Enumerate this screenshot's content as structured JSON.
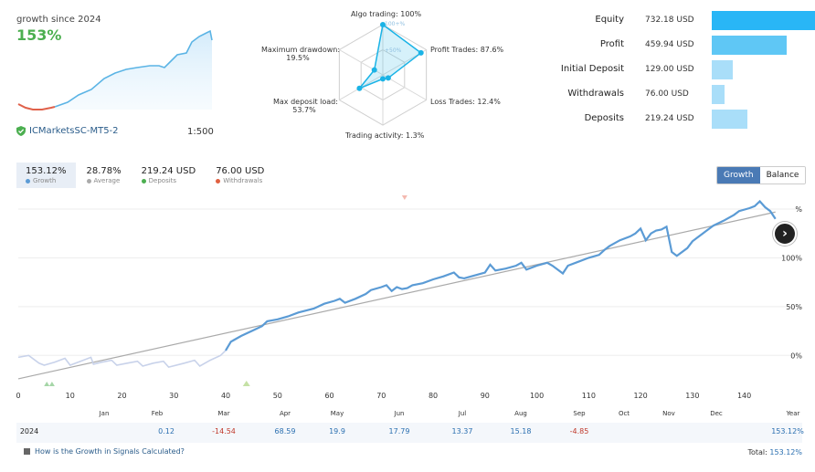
{
  "summary": {
    "growth_title": "growth since 2024",
    "growth_value": "153%",
    "account": "ICMarketsSC-MT5-2",
    "leverage": "1:500"
  },
  "radar": {
    "labels": {
      "algo": "Algo trading: 100%",
      "profit": "Profit Trades: 87.6%",
      "loss": "Loss Trades: 12.4%",
      "activity": "Trading activity: 1.3%",
      "deposit_load": "Max deposit load:",
      "deposit_load_val": "53.7%",
      "drawdown": "Maximum drawdown:",
      "drawdown_val": "19.5%"
    },
    "ring_labels": {
      "r100": "100+%",
      "r50": "+50%"
    },
    "values": {
      "algo": 1.0,
      "profit": 0.876,
      "loss": 0.124,
      "activity": 0.013,
      "deposit_load": 0.537,
      "drawdown": 0.195
    },
    "color": "#1ab3e6"
  },
  "balance_bars": [
    {
      "label": "Equity",
      "value": "732.18 USD",
      "amount": 732.18,
      "color": "#29b6f6"
    },
    {
      "label": "Profit",
      "value": "459.94 USD",
      "amount": 459.94,
      "color": "#5fc7f5"
    },
    {
      "label": "Initial Deposit",
      "value": "129.00 USD",
      "amount": 129.0,
      "color": "#a9def9"
    },
    {
      "label": "Withdrawals",
      "value": "76.00  USD",
      "amount": 76.0,
      "color": "#a9def9"
    },
    {
      "label": "Deposits",
      "value": "219.24 USD",
      "amount": 219.24,
      "color": "#a9def9"
    }
  ],
  "stats": [
    {
      "value": "153.12%",
      "label": "Growth",
      "color": "#5b9bd5",
      "active": true
    },
    {
      "value": "28.78%",
      "label": "Average",
      "color": "#aaaaaa",
      "active": false
    },
    {
      "value": "219.24 USD",
      "label": "Deposits",
      "color": "#4caf50",
      "active": false
    },
    {
      "value": "76.00 USD",
      "label": "Withdrawals",
      "color": "#e06040",
      "active": false
    }
  ],
  "toggle": {
    "growth": "Growth",
    "balance": "Balance"
  },
  "chart_data": {
    "type": "line",
    "x_ticks": [
      "0",
      "10",
      "20",
      "30",
      "40",
      "50",
      "60",
      "70",
      "80",
      "90",
      "100",
      "110",
      "120",
      "130",
      "140"
    ],
    "y_ticks": [
      "0%",
      "50%",
      "100%",
      "%"
    ],
    "xlim": [
      0,
      145
    ],
    "ylim": [
      -25,
      165
    ],
    "series": [
      {
        "values": [
          [
            0,
            -2
          ],
          [
            2,
            0
          ],
          [
            4,
            -8
          ],
          [
            5,
            -10
          ],
          [
            7,
            -7
          ],
          [
            9,
            -3
          ],
          [
            10,
            -10
          ],
          [
            12,
            -6
          ],
          [
            14,
            -2
          ],
          [
            14.5,
            -9
          ],
          [
            16,
            -7
          ],
          [
            18,
            -5
          ],
          [
            19,
            -10
          ],
          [
            21,
            -8
          ],
          [
            23,
            -6
          ],
          [
            24,
            -11
          ],
          [
            26,
            -8
          ],
          [
            28,
            -6
          ],
          [
            29,
            -12
          ],
          [
            32,
            -8
          ],
          [
            34,
            -5
          ],
          [
            35,
            -11
          ],
          [
            37,
            -5
          ],
          [
            39,
            0
          ],
          [
            40,
            5
          ],
          [
            41,
            14
          ],
          [
            43,
            20
          ],
          [
            45,
            25
          ],
          [
            47,
            30
          ],
          [
            48,
            35
          ],
          [
            50,
            37
          ],
          [
            52,
            40
          ],
          [
            54,
            44
          ],
          [
            57,
            48
          ],
          [
            59,
            53
          ],
          [
            61,
            56
          ],
          [
            62,
            58
          ],
          [
            63,
            54
          ],
          [
            65,
            58
          ],
          [
            67,
            63
          ],
          [
            68,
            67
          ],
          [
            70,
            70
          ],
          [
            71,
            72
          ],
          [
            72,
            66
          ],
          [
            73,
            70
          ],
          [
            74,
            68
          ],
          [
            75,
            69
          ],
          [
            76,
            72
          ],
          [
            78,
            74
          ],
          [
            80,
            78
          ],
          [
            82,
            81
          ],
          [
            84,
            85
          ],
          [
            85,
            80
          ],
          [
            86,
            79
          ],
          [
            88,
            82
          ],
          [
            90,
            85
          ],
          [
            91,
            93
          ],
          [
            92,
            87
          ],
          [
            94,
            89
          ],
          [
            96,
            92
          ],
          [
            97,
            95
          ],
          [
            98,
            88
          ],
          [
            100,
            92
          ],
          [
            102,
            95
          ],
          [
            103,
            92
          ],
          [
            104,
            88
          ],
          [
            105,
            84
          ],
          [
            106,
            92
          ],
          [
            108,
            96
          ],
          [
            110,
            100
          ],
          [
            112,
            103
          ],
          [
            113,
            108
          ],
          [
            114,
            112
          ],
          [
            116,
            118
          ],
          [
            118,
            122
          ],
          [
            119,
            125
          ],
          [
            120,
            130
          ],
          [
            121,
            118
          ],
          [
            122,
            125
          ],
          [
            123,
            128
          ],
          [
            124,
            129
          ],
          [
            125,
            132
          ],
          [
            126,
            106
          ],
          [
            127,
            102
          ],
          [
            129,
            110
          ],
          [
            130,
            117
          ],
          [
            132,
            125
          ],
          [
            134,
            133
          ],
          [
            136,
            138
          ],
          [
            138,
            144
          ],
          [
            139,
            148
          ],
          [
            141,
            151
          ],
          [
            142,
            153
          ],
          [
            143,
            158
          ],
          [
            144,
            152
          ],
          [
            145,
            148
          ],
          [
            146,
            140
          ]
        ],
        "color": "#5b9bd5"
      },
      {
        "values": [
          [
            0,
            -24
          ],
          [
            146,
            147
          ]
        ],
        "color": "#aaaaaa"
      }
    ],
    "grid": true
  },
  "months": [
    "Jan",
    "Feb",
    "Mar",
    "Apr",
    "May",
    "Jun",
    "Jul",
    "Aug",
    "Sep",
    "Oct",
    "Nov",
    "Dec",
    "Year"
  ],
  "monthly": {
    "year": "2024",
    "values": [
      "",
      "0.12",
      "-14.54",
      "68.59",
      "19.9",
      "17.79",
      "13.37",
      "15.18",
      "-4.85",
      "",
      "",
      "",
      "153.12%"
    ]
  },
  "footer": {
    "help": "How is the Growth in Signals Calculated?",
    "total_label": "Total:",
    "total_value": "153.12%"
  }
}
